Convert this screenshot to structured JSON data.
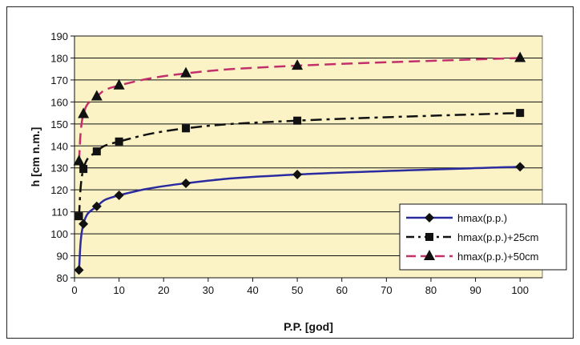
{
  "chart_data": {
    "type": "line",
    "xlabel": "P.P. [god]",
    "ylabel": "h [cm n.m.]",
    "xlim": [
      0,
      105
    ],
    "ylim": [
      80,
      190
    ],
    "x_ticks": [
      0,
      10,
      20,
      30,
      40,
      50,
      60,
      70,
      80,
      90,
      100
    ],
    "y_ticks": [
      80,
      90,
      100,
      110,
      120,
      130,
      140,
      150,
      160,
      170,
      180,
      190
    ],
    "grid": "horizontal",
    "legend_position": "right",
    "plot_background": "#fbf3c6",
    "series": [
      {
        "name": "hmax(p.p.)",
        "color": "#2b2ba0",
        "line_style": "solid",
        "marker": "diamond",
        "x": [
          1,
          2,
          5,
          10,
          25,
          50,
          100
        ],
        "y": [
          83.5,
          104.5,
          112.5,
          117.5,
          123,
          127,
          130.5
        ]
      },
      {
        "name": "hmax(p.p.)+25cm",
        "color": "#111111",
        "line_style": "dash-dot",
        "marker": "square",
        "x": [
          1,
          2,
          5,
          10,
          25,
          50,
          100
        ],
        "y": [
          108,
          129.5,
          137.5,
          142,
          148,
          151.5,
          155
        ]
      },
      {
        "name": "hmax(p.p.)+50cm",
        "color": "#c2306a",
        "line_style": "dashed",
        "marker": "triangle",
        "x": [
          1,
          2,
          5,
          10,
          25,
          50,
          100
        ],
        "y": [
          133,
          154.5,
          162.5,
          167.5,
          173,
          176.5,
          180
        ]
      }
    ]
  }
}
